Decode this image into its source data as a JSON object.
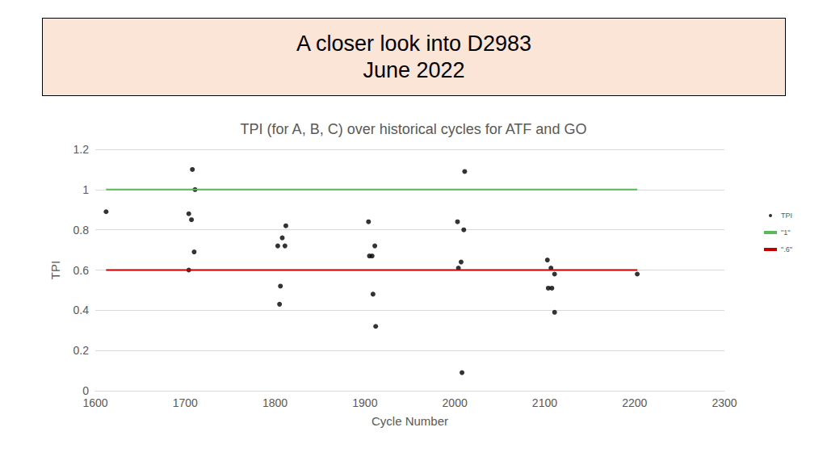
{
  "header": {
    "lines": [
      "A closer look into D2983",
      "June 2022"
    ]
  },
  "chart_data": {
    "type": "scatter",
    "title": "TPI (for A, B, C) over historical cycles for ATF and GO",
    "x_label": "Cycle Number",
    "y_label": "TPI",
    "xlim": [
      1600,
      2300
    ],
    "xticks": [
      1600,
      1700,
      1800,
      1900,
      2000,
      2100,
      2200,
      2300
    ],
    "ylim": [
      0,
      1.2
    ],
    "yticks": [
      0,
      0.2,
      0.4,
      0.6,
      0.8,
      1,
      1.2
    ],
    "grid": true,
    "legend": "right",
    "series": [
      {
        "name": "TPI",
        "type": "scatter",
        "color": "#000000",
        "marker": "circle",
        "x": [
          1612,
          1704,
          1704,
          1707,
          1708,
          1710,
          1711,
          1803,
          1805,
          1806,
          1808,
          1811,
          1812,
          1904,
          1905,
          1908,
          1909,
          1911,
          1912,
          2003,
          2004,
          2007,
          2008,
          2010,
          2011,
          2103,
          2104,
          2107,
          2108,
          2111,
          2111,
          2203
        ],
        "values": [
          0.89,
          0.88,
          0.6,
          0.85,
          1.1,
          0.69,
          1.0,
          0.72,
          0.43,
          0.52,
          0.76,
          0.72,
          0.82,
          0.84,
          0.67,
          0.67,
          0.48,
          0.72,
          0.32,
          0.84,
          0.61,
          0.64,
          0.09,
          0.8,
          1.09,
          0.65,
          0.51,
          0.61,
          0.51,
          0.58,
          0.39,
          0.58
        ]
      },
      {
        "name": "\"1\"",
        "type": "line",
        "color": "#5cb85c",
        "line_style": "solid",
        "x": [
          1612,
          2203
        ],
        "values": [
          1,
          1
        ]
      },
      {
        "name": "\".6\"",
        "type": "line",
        "color": "#c00000",
        "line_style": "solid",
        "x": [
          1612,
          2203
        ],
        "values": [
          0.6,
          0.6
        ]
      }
    ]
  }
}
